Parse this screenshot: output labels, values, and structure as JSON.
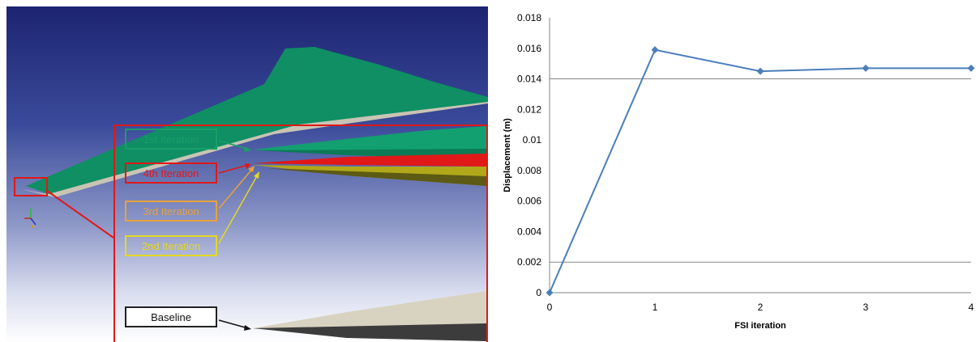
{
  "render": {
    "labels": {
      "first": "1st Iteration",
      "fourth": "4th Iteration",
      "third": "3rd Iteration",
      "second": "2nd Iteration",
      "baseline": "Baseline"
    },
    "colors": {
      "first": "#1a9e6a",
      "fourth": "#e01818",
      "third": "#e8a23a",
      "second": "#e6d820",
      "baseline": "#222222"
    }
  },
  "chart_data": {
    "type": "line",
    "x": [
      0,
      1,
      2,
      3,
      4
    ],
    "series": [
      {
        "values": [
          0,
          0.0159,
          0.0145,
          0.0147,
          0.0147
        ]
      }
    ],
    "xlabel": "FSI iteration",
    "ylabel": "Displacement (m)",
    "xlim": [
      0,
      4
    ],
    "ylim": [
      0,
      0.018
    ],
    "xticks": [
      "0",
      "1",
      "2",
      "3",
      "4"
    ],
    "yticks": [
      "0",
      "0.002",
      "0.004",
      "0.006",
      "0.008",
      "0.01",
      "0.012",
      "0.014",
      "0.016",
      "0.018"
    ],
    "gridlines": [
      0.002,
      0.014
    ],
    "line_color": "#4a7ebb",
    "marker": "diamond",
    "legend": "none"
  }
}
